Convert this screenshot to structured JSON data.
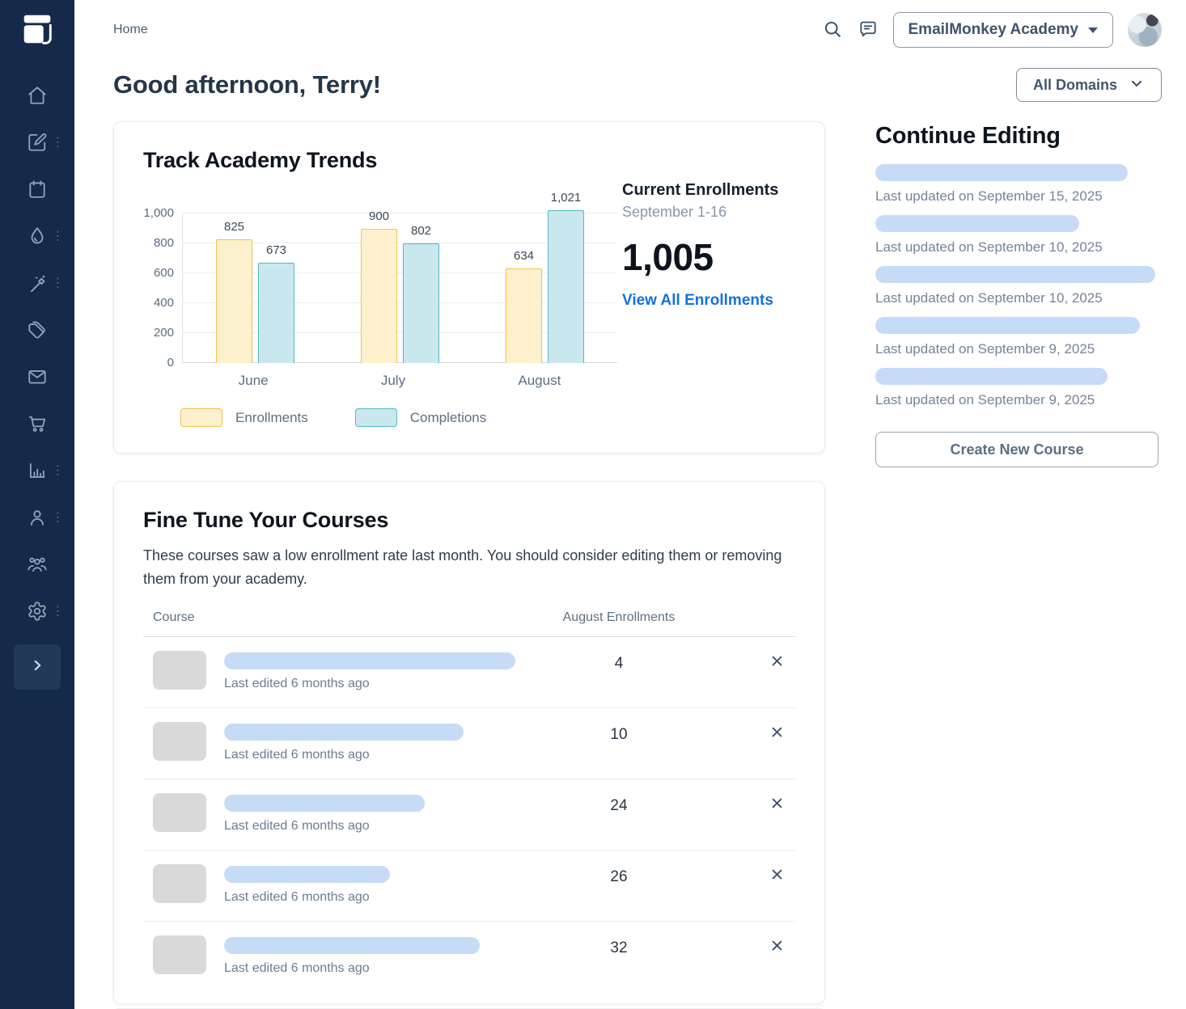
{
  "sidebar": {
    "logo_icon": "stacked-windows",
    "items": [
      {
        "icon": "home",
        "has_menu": false
      },
      {
        "icon": "compose",
        "has_menu": true
      },
      {
        "icon": "calendar",
        "has_menu": false
      },
      {
        "icon": "droplet",
        "has_menu": true
      },
      {
        "icon": "magic-wand",
        "has_menu": true
      },
      {
        "icon": "tag",
        "has_menu": false
      },
      {
        "icon": "mail",
        "has_menu": false
      },
      {
        "icon": "cart",
        "has_menu": false
      },
      {
        "icon": "bar-chart",
        "has_menu": true
      },
      {
        "icon": "user",
        "has_menu": true
      },
      {
        "icon": "users",
        "has_menu": false
      },
      {
        "icon": "settings",
        "has_menu": true
      }
    ],
    "collapse_icon": "chevron-right",
    "bg_color": "#15294A"
  },
  "topbar": {
    "breadcrumb": "Home",
    "search_icon": "search",
    "chat_icon": "chat",
    "account_button": "EmailMonkey Academy",
    "avatar": "user-photo"
  },
  "header": {
    "greeting": "Good afternoon, Terry!",
    "domain_filter": "All Domains"
  },
  "chart_data": {
    "type": "bar",
    "title": "Track Academy Trends",
    "categories": [
      "June",
      "July",
      "August"
    ],
    "series": [
      {
        "name": "Enrollments",
        "values": [
          825,
          900,
          634
        ],
        "fill": "#FCF0CD",
        "border": "#F1C24B"
      },
      {
        "name": "Completions",
        "values": [
          673,
          802,
          1021
        ],
        "fill": "#C9E8EE",
        "border": "#54B7CA"
      }
    ],
    "ylim": [
      0,
      1000
    ],
    "yticks": [
      0,
      200,
      400,
      600,
      800,
      1000
    ],
    "grid": true,
    "legend_position": "bottom",
    "value_labels": true,
    "xlabel": "",
    "ylabel": ""
  },
  "trends_card": {
    "current_enrollments": {
      "label": "Current Enrollments",
      "period": "September 1-16",
      "value": "1,005",
      "link": "View All Enrollments",
      "link_color": "#1670DD"
    }
  },
  "continue_editing": {
    "title": "Continue Editing",
    "items": [
      {
        "last_updated": "Last updated on September 15, 2025",
        "pill_width": 312
      },
      {
        "last_updated": "Last updated on September 10, 2025",
        "pill_width": 252
      },
      {
        "last_updated": "Last updated on September 10, 2025",
        "pill_width": 346
      },
      {
        "last_updated": "Last updated on September 9, 2025",
        "pill_width": 327
      },
      {
        "last_updated": "Last updated on September 9, 2025",
        "pill_width": 287
      }
    ],
    "button": "Create New Course"
  },
  "fine_tune": {
    "title": "Fine Tune Your Courses",
    "description": "These courses saw a low enrollment rate last month. You should consider editing them or removing them from your academy.",
    "columns": {
      "course": "Course",
      "enrollments": "August Enrollments"
    },
    "rows": [
      {
        "enrollments": "4",
        "last_edited": "Last edited 6 months ago",
        "pill_width": 360
      },
      {
        "enrollments": "10",
        "last_edited": "Last edited 6 months ago",
        "pill_width": 296
      },
      {
        "enrollments": "24",
        "last_edited": "Last edited 6 months ago",
        "pill_width": 248
      },
      {
        "enrollments": "26",
        "last_edited": "Last edited 6 months ago",
        "pill_width": 205
      },
      {
        "enrollments": "32",
        "last_edited": "Last edited 6 months ago",
        "pill_width": 316
      }
    ],
    "remove_icon": "close"
  },
  "colors": {
    "sidebar_bg": "#15294A",
    "accent_link": "#1670DD",
    "skeleton_pill_blue": "#C6DBF5",
    "thumb_gray": "#D9D9D9"
  }
}
